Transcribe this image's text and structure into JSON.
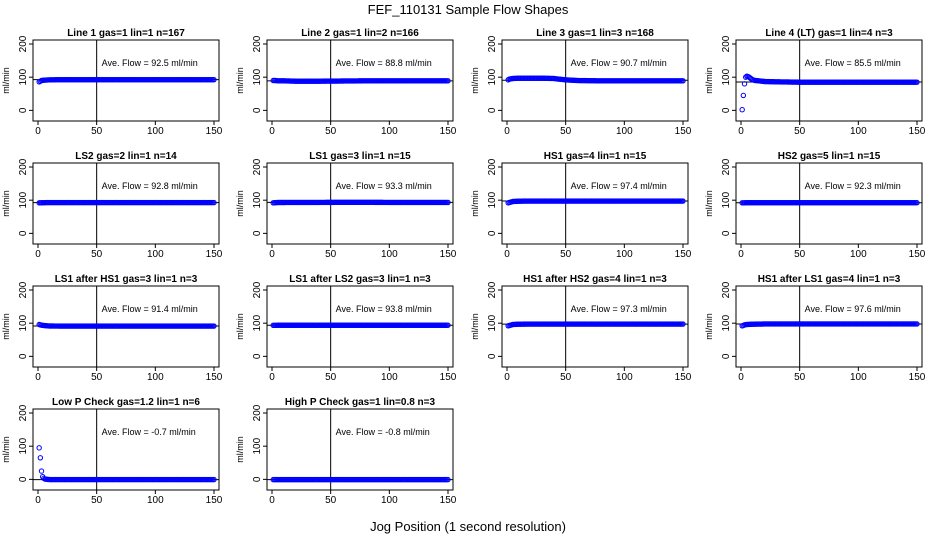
{
  "figure": {
    "title": "FEF_110131  Sample Flow Shapes",
    "xlabel": "Jog Position (1 second resolution)",
    "point_color": "#0000ff"
  },
  "chart_data": [
    {
      "type": "scatter",
      "title": "Line 1 gas=1 lin=1 n=167",
      "ylabel": "ml/min",
      "annotation": "Ave. Flow =  92.5  ml/min",
      "xlim": [
        0,
        150
      ],
      "ylim": [
        -20,
        200
      ],
      "xticks": [
        0,
        50,
        100,
        150
      ],
      "yticks": [
        0,
        100,
        200
      ],
      "yticklabels": [
        "0",
        "100",
        "200"
      ],
      "hline": 92.5,
      "vline": 50,
      "series": [
        {
          "x": [
            1,
            2,
            3,
            5,
            10,
            20,
            40,
            60,
            80,
            100,
            120,
            140,
            150
          ],
          "y": [
            86,
            88,
            90,
            91,
            92,
            92.5,
            92.5,
            92.5,
            92.5,
            92.5,
            92.5,
            92.5,
            92.5
          ]
        }
      ]
    },
    {
      "type": "scatter",
      "title": "Line 2 gas=1 lin=2 n=166",
      "ylabel": "ml/min",
      "annotation": "Ave. Flow =  88.8  ml/min",
      "xlim": [
        0,
        150
      ],
      "ylim": [
        -20,
        200
      ],
      "xticks": [
        0,
        50,
        100,
        150
      ],
      "yticks": [
        0,
        100,
        200
      ],
      "yticklabels": [
        "0",
        "100",
        "200"
      ],
      "hline": 88.8,
      "vline": 50,
      "series": [
        {
          "x": [
            1,
            2,
            3,
            5,
            10,
            20,
            40,
            60,
            80,
            100,
            120,
            140,
            150
          ],
          "y": [
            90,
            90,
            90,
            89,
            89,
            88,
            88,
            88.5,
            89,
            89,
            89,
            89,
            89
          ]
        }
      ]
    },
    {
      "type": "scatter",
      "title": "Line 3 gas=1 lin=3 n=168",
      "ylabel": "ml/min",
      "annotation": "Ave. Flow =  90.7  ml/min",
      "xlim": [
        0,
        150
      ],
      "ylim": [
        -20,
        200
      ],
      "xticks": [
        0,
        50,
        100,
        150
      ],
      "yticks": [
        0,
        100,
        200
      ],
      "yticklabels": [
        "0",
        "100",
        "200"
      ],
      "hline": 90.7,
      "vline": 50,
      "series": [
        {
          "x": [
            1,
            2,
            3,
            5,
            10,
            20,
            30,
            40,
            50,
            60,
            80,
            100,
            120,
            140,
            150
          ],
          "y": [
            92,
            94,
            95,
            96,
            97,
            97,
            97,
            96,
            92,
            90,
            89,
            89,
            89,
            89,
            89
          ]
        }
      ]
    },
    {
      "type": "scatter",
      "title": "Line 4 (LT) gas=1 lin=4 n=3",
      "ylabel": "ml/min",
      "annotation": "Ave. Flow =  85.5  ml/min",
      "xlim": [
        0,
        150
      ],
      "ylim": [
        -20,
        200
      ],
      "xticks": [
        0,
        50,
        100,
        150
      ],
      "yticks": [
        0,
        100,
        200
      ],
      "yticklabels": [
        "0",
        "100",
        "200"
      ],
      "hline": 85.5,
      "vline": 50,
      "series": [
        {
          "x": [
            1,
            2,
            3,
            4,
            5,
            6,
            7,
            8,
            10,
            12,
            15,
            20,
            30,
            50,
            80,
            100,
            120,
            140,
            150
          ],
          "y": [
            2,
            45,
            80,
            100,
            103,
            102,
            100,
            97,
            92,
            90,
            89,
            87,
            86,
            85,
            85,
            85,
            85,
            85,
            85
          ]
        }
      ]
    },
    {
      "type": "scatter",
      "title": "LS2 gas=2 lin=1 n=14",
      "ylabel": "ml/min",
      "annotation": "Ave. Flow =  92.8  ml/min",
      "xlim": [
        0,
        150
      ],
      "ylim": [
        -20,
        200
      ],
      "xticks": [
        0,
        50,
        100,
        150
      ],
      "yticks": [
        0,
        100,
        200
      ],
      "yticklabels": [
        "0",
        "100",
        "200"
      ],
      "hline": 92.8,
      "vline": 50,
      "series": [
        {
          "x": [
            1,
            5,
            10,
            20,
            40,
            60,
            80,
            100,
            120,
            140,
            150
          ],
          "y": [
            92,
            92.5,
            92.8,
            92.8,
            92.8,
            92.8,
            92.8,
            92.8,
            92.8,
            92.8,
            92.8
          ]
        }
      ]
    },
    {
      "type": "scatter",
      "title": "LS1 gas=3 lin=1 n=15",
      "ylabel": "ml/min",
      "annotation": "Ave. Flow =  93.3  ml/min",
      "xlim": [
        0,
        150
      ],
      "ylim": [
        -20,
        200
      ],
      "xticks": [
        0,
        50,
        100,
        150
      ],
      "yticks": [
        0,
        100,
        200
      ],
      "yticklabels": [
        "0",
        "100",
        "200"
      ],
      "hline": 93.3,
      "vline": 50,
      "series": [
        {
          "x": [
            1,
            5,
            10,
            20,
            40,
            60,
            80,
            100,
            120,
            140,
            150
          ],
          "y": [
            92,
            93,
            93,
            93.3,
            93.3,
            93.5,
            93.5,
            93.3,
            93.3,
            93.3,
            93.3
          ]
        }
      ]
    },
    {
      "type": "scatter",
      "title": "HS1 gas=4 lin=1 n=15",
      "ylabel": "ml/min",
      "annotation": "Ave. Flow =  97.4  ml/min",
      "xlim": [
        0,
        150
      ],
      "ylim": [
        -20,
        200
      ],
      "xticks": [
        0,
        50,
        100,
        150
      ],
      "yticks": [
        0,
        100,
        200
      ],
      "yticklabels": [
        "0",
        "100",
        "200"
      ],
      "hline": 97.4,
      "vline": 50,
      "series": [
        {
          "x": [
            1,
            2,
            3,
            5,
            10,
            20,
            40,
            60,
            80,
            100,
            120,
            140,
            150
          ],
          "y": [
            92,
            93,
            94,
            96,
            97,
            97.4,
            97.4,
            97.4,
            97.4,
            97.4,
            97.4,
            97.4,
            97.4
          ]
        }
      ]
    },
    {
      "type": "scatter",
      "title": "HS2 gas=5 lin=1 n=15",
      "ylabel": "ml/min",
      "annotation": "Ave. Flow =  92.3  ml/min",
      "xlim": [
        0,
        150
      ],
      "ylim": [
        -20,
        200
      ],
      "xticks": [
        0,
        50,
        100,
        150
      ],
      "yticks": [
        0,
        100,
        200
      ],
      "yticklabels": [
        "0",
        "100",
        "200"
      ],
      "hline": 92.3,
      "vline": 50,
      "series": [
        {
          "x": [
            1,
            5,
            10,
            20,
            40,
            60,
            80,
            100,
            120,
            140,
            150
          ],
          "y": [
            92,
            92.3,
            92.3,
            92.3,
            92.3,
            92.3,
            92.3,
            92.3,
            92.3,
            92.3,
            92.3
          ]
        }
      ]
    },
    {
      "type": "scatter",
      "title": "LS1 after HS1 gas=3 lin=1 n=3",
      "ylabel": "ml/min",
      "annotation": "Ave. Flow =  91.4  ml/min",
      "xlim": [
        0,
        150
      ],
      "ylim": [
        -20,
        200
      ],
      "xticks": [
        0,
        50,
        100,
        150
      ],
      "yticks": [
        0,
        100,
        200
      ],
      "yticklabels": [
        "0",
        "100",
        "200"
      ],
      "hline": 91.4,
      "vline": 50,
      "series": [
        {
          "x": [
            1,
            2,
            3,
            5,
            8,
            10,
            20,
            40,
            60,
            80,
            100,
            120,
            140,
            150
          ],
          "y": [
            96,
            95,
            94,
            93,
            92,
            91.5,
            91.4,
            91.4,
            91.4,
            91.4,
            91.4,
            91.4,
            91.4,
            91.4
          ]
        }
      ]
    },
    {
      "type": "scatter",
      "title": "LS1 after LS2 gas=3 lin=1 n=3",
      "ylabel": "ml/min",
      "annotation": "Ave. Flow =  93.8  ml/min",
      "xlim": [
        0,
        150
      ],
      "ylim": [
        -20,
        200
      ],
      "xticks": [
        0,
        50,
        100,
        150
      ],
      "yticks": [
        0,
        100,
        200
      ],
      "yticklabels": [
        "0",
        "100",
        "200"
      ],
      "hline": 93.8,
      "vline": 50,
      "series": [
        {
          "x": [
            1,
            5,
            10,
            20,
            40,
            60,
            80,
            100,
            120,
            140,
            150
          ],
          "y": [
            93.5,
            93.8,
            93.8,
            93.8,
            93.8,
            93.8,
            93.8,
            93.8,
            93.8,
            93.8,
            93.8
          ]
        }
      ]
    },
    {
      "type": "scatter",
      "title": "HS1 after HS2 gas=4 lin=1 n=3",
      "ylabel": "ml/min",
      "annotation": "Ave. Flow =  97.3  ml/min",
      "xlim": [
        0,
        150
      ],
      "ylim": [
        -20,
        200
      ],
      "xticks": [
        0,
        50,
        100,
        150
      ],
      "yticks": [
        0,
        100,
        200
      ],
      "yticklabels": [
        "0",
        "100",
        "200"
      ],
      "hline": 97.3,
      "vline": 50,
      "series": [
        {
          "x": [
            1,
            2,
            3,
            5,
            10,
            20,
            40,
            60,
            80,
            100,
            120,
            140,
            150
          ],
          "y": [
            92,
            93,
            94,
            96,
            97,
            97.3,
            97.3,
            97.3,
            97.3,
            97.3,
            97.3,
            97.3,
            97.3
          ]
        }
      ]
    },
    {
      "type": "scatter",
      "title": "HS1 after LS1 gas=4 lin=1 n=3",
      "ylabel": "ml/min",
      "annotation": "Ave. Flow =  97.6  ml/min",
      "xlim": [
        0,
        150
      ],
      "ylim": [
        -20,
        200
      ],
      "xticks": [
        0,
        50,
        100,
        150
      ],
      "yticks": [
        0,
        100,
        200
      ],
      "yticklabels": [
        "0",
        "100",
        "200"
      ],
      "hline": 97.6,
      "vline": 50,
      "series": [
        {
          "x": [
            1,
            2,
            3,
            5,
            10,
            20,
            40,
            60,
            80,
            100,
            120,
            140,
            150
          ],
          "y": [
            92,
            93,
            95,
            96,
            97,
            97.6,
            97.6,
            97.6,
            97.6,
            97.6,
            97.6,
            97.6,
            97.6
          ]
        }
      ]
    },
    {
      "type": "scatter",
      "title": "Low P Check gas=1.2 lin=1 n=6",
      "ylabel": "ml/min",
      "annotation": "Ave. Flow =  -0.7  ml/min",
      "xlim": [
        0,
        150
      ],
      "ylim": [
        -20,
        200
      ],
      "xticks": [
        0,
        50,
        100,
        150
      ],
      "yticks": [
        0,
        100,
        200
      ],
      "yticklabels": [
        "0",
        "100",
        "200"
      ],
      "hline": -0.7,
      "vline": 50,
      "series": [
        {
          "x": [
            1,
            2,
            3,
            4,
            5,
            6,
            8,
            10,
            15,
            20,
            40,
            60,
            80,
            100,
            120,
            140,
            150
          ],
          "y": [
            95,
            65,
            25,
            8,
            3,
            1,
            0,
            -0.5,
            -0.7,
            -0.7,
            -0.7,
            -0.7,
            -0.7,
            -0.7,
            -0.7,
            -0.7,
            -0.7
          ]
        }
      ]
    },
    {
      "type": "scatter",
      "title": "High P Check gas=1 lin=0.8 n=3",
      "ylabel": "ml/min",
      "annotation": "Ave. Flow =  -0.8  ml/min",
      "xlim": [
        0,
        150
      ],
      "ylim": [
        -20,
        200
      ],
      "xticks": [
        0,
        50,
        100,
        150
      ],
      "yticks": [
        0,
        100,
        200
      ],
      "yticklabels": [
        "0",
        "100",
        "200"
      ],
      "hline": -0.8,
      "vline": 50,
      "series": [
        {
          "x": [
            1,
            5,
            10,
            20,
            40,
            60,
            80,
            100,
            120,
            140,
            150
          ],
          "y": [
            -0.8,
            -0.8,
            -0.8,
            -0.8,
            -0.8,
            -0.8,
            -0.8,
            -0.8,
            -0.8,
            -0.8,
            -0.8
          ]
        }
      ]
    }
  ]
}
